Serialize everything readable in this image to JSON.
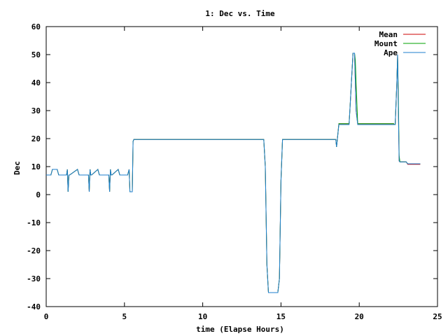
{
  "chart_data": {
    "type": "line",
    "title": "1: Dec vs. Time",
    "xlabel": "time (Elapse Hours)",
    "ylabel": "Dec",
    "xlim": [
      0,
      25
    ],
    "ylim": [
      -40,
      60
    ],
    "xticks": [
      0,
      5,
      10,
      15,
      20,
      25
    ],
    "yticks": [
      -40,
      -30,
      -20,
      -10,
      0,
      10,
      20,
      30,
      40,
      50,
      60
    ],
    "grid": false,
    "legend_position": "top-right",
    "series": [
      {
        "name": "Mean",
        "color": "#cc0000",
        "x": [
          0.0,
          0.3,
          0.4,
          0.7,
          0.8,
          1.3,
          1.35,
          1.4,
          1.45,
          1.5,
          2.0,
          2.1,
          2.2,
          2.7,
          2.75,
          2.8,
          2.85,
          2.9,
          3.3,
          3.4,
          3.5,
          4.0,
          4.05,
          4.1,
          4.15,
          4.2,
          4.6,
          4.7,
          4.8,
          5.2,
          5.3,
          5.35,
          5.5,
          5.55,
          5.6,
          13.9,
          14.0,
          14.1,
          14.15,
          14.2,
          14.8,
          14.9,
          15.0,
          15.1,
          18.5,
          18.55,
          18.6,
          18.7,
          19.35,
          19.4,
          19.6,
          19.7,
          19.75,
          19.8,
          19.9,
          19.95,
          22.2,
          22.25,
          22.3,
          22.4,
          22.45,
          22.5,
          22.55,
          22.6,
          23.0,
          23.1,
          23.5,
          23.6,
          23.9
        ],
        "values": [
          7,
          7,
          9,
          9,
          7,
          7,
          9,
          1,
          7,
          7,
          9,
          7,
          7,
          7,
          1,
          9,
          7,
          7,
          9,
          7,
          7,
          7,
          1,
          9,
          7,
          7,
          9,
          7,
          7,
          7,
          9,
          1,
          1,
          19,
          19.7,
          19.7,
          10,
          -25,
          -30,
          -35,
          -35,
          -30,
          5,
          19.7,
          19.7,
          17,
          19.7,
          25.3,
          25.3,
          30,
          50.5,
          50.5,
          40,
          30,
          25.3,
          25.3,
          25.3,
          25,
          25,
          40,
          50,
          30,
          12,
          11.7,
          11.7,
          10.8,
          10.8,
          10.8,
          10.8
        ]
      },
      {
        "name": "Mount",
        "color": "#00a000",
        "x": [
          0.0,
          0.3,
          0.4,
          0.7,
          0.8,
          1.3,
          1.35,
          1.4,
          1.45,
          1.5,
          2.0,
          2.1,
          2.2,
          2.7,
          2.75,
          2.8,
          2.85,
          2.9,
          3.3,
          3.4,
          3.5,
          4.0,
          4.05,
          4.1,
          4.15,
          4.2,
          4.6,
          4.7,
          4.8,
          5.2,
          5.3,
          5.35,
          5.5,
          5.55,
          5.6,
          13.9,
          14.0,
          14.1,
          14.15,
          14.2,
          14.8,
          14.9,
          15.0,
          15.1,
          18.5,
          18.55,
          18.6,
          18.7,
          19.35,
          19.4,
          19.6,
          19.7,
          19.75,
          19.8,
          19.9,
          19.95,
          22.2,
          22.25,
          22.3,
          22.4,
          22.45,
          22.5,
          22.55,
          22.6,
          23.0,
          23.1,
          23.5,
          23.6,
          23.9
        ],
        "values": [
          7,
          7,
          9,
          9,
          7,
          7,
          9,
          1,
          7,
          7,
          9,
          7,
          7,
          7,
          1,
          9,
          7,
          7,
          9,
          7,
          7,
          7,
          1,
          9,
          7,
          7,
          9,
          7,
          7,
          7,
          9,
          1,
          1,
          19,
          19.7,
          19.7,
          10,
          -25,
          -30,
          -35,
          -35,
          -30,
          5,
          19.7,
          19.7,
          17,
          19.7,
          25.3,
          25.3,
          30,
          50.5,
          50.5,
          48,
          40,
          25.3,
          25.3,
          25.3,
          25,
          25,
          40,
          50,
          35,
          14,
          11.7,
          11.7,
          11,
          11,
          11,
          11
        ]
      },
      {
        "name": "Ape",
        "color": "#1e7fcf",
        "x": [
          0.0,
          0.3,
          0.4,
          0.7,
          0.8,
          1.3,
          1.35,
          1.4,
          1.45,
          1.5,
          2.0,
          2.1,
          2.2,
          2.7,
          2.75,
          2.8,
          2.85,
          2.9,
          3.3,
          3.4,
          3.5,
          4.0,
          4.05,
          4.1,
          4.15,
          4.2,
          4.6,
          4.7,
          4.8,
          5.2,
          5.3,
          5.35,
          5.5,
          5.55,
          5.6,
          13.9,
          14.0,
          14.1,
          14.15,
          14.2,
          14.8,
          14.9,
          15.0,
          15.1,
          18.5,
          18.55,
          18.6,
          18.7,
          19.35,
          19.4,
          19.6,
          19.7,
          19.75,
          19.8,
          19.9,
          19.95,
          22.2,
          22.25,
          22.3,
          22.4,
          22.45,
          22.5,
          22.55,
          22.6,
          23.0,
          23.1,
          23.5,
          23.6,
          23.9
        ],
        "values": [
          7,
          7,
          9,
          9,
          7,
          7,
          9,
          1,
          7,
          7,
          9,
          7,
          7,
          7,
          1,
          9,
          7,
          7,
          9,
          7,
          7,
          7,
          1,
          9,
          7,
          7,
          9,
          7,
          7,
          7,
          9,
          1,
          1,
          19,
          19.7,
          19.7,
          10,
          -25,
          -30,
          -35,
          -35,
          -30,
          5,
          19.7,
          19.7,
          17,
          19.7,
          25,
          25,
          30,
          50.5,
          50.5,
          40,
          30,
          25,
          25,
          25,
          25,
          25,
          40,
          50,
          30,
          12,
          11.7,
          11.7,
          11,
          11,
          11,
          11
        ]
      }
    ]
  }
}
